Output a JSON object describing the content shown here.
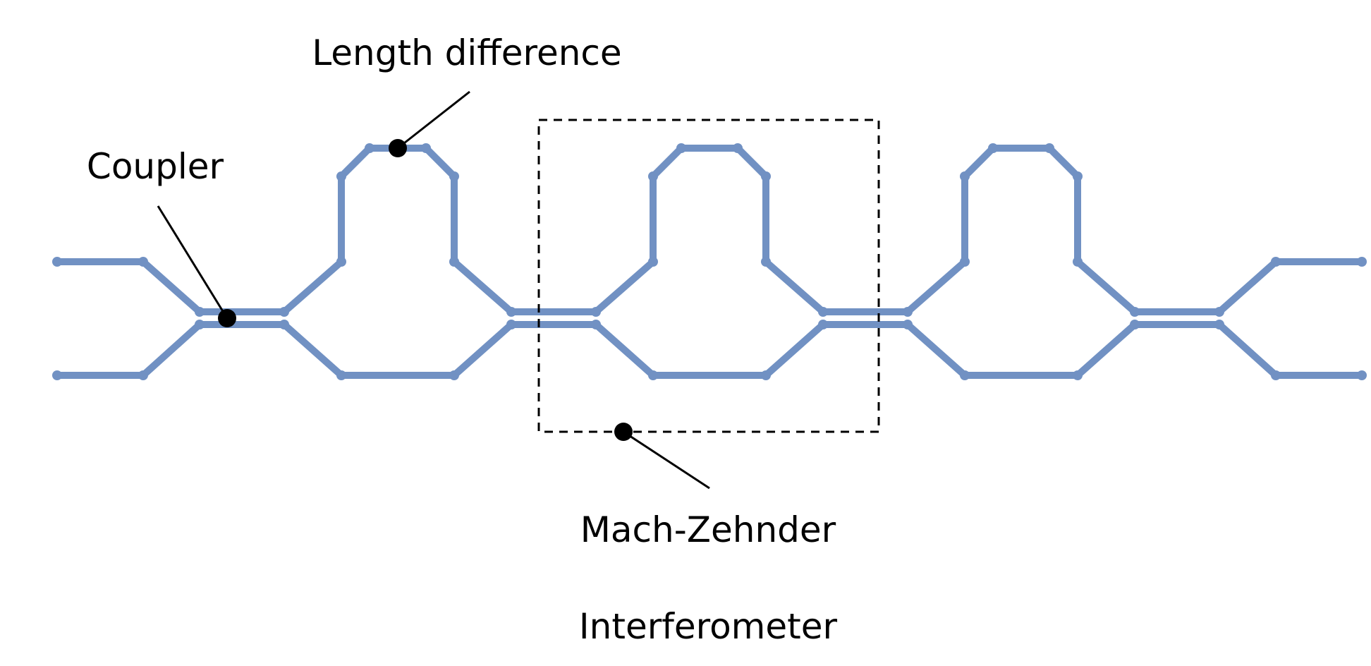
{
  "labels": {
    "length_difference": "Length difference",
    "coupler": "Coupler",
    "mach_zehnder": "Mach-Zehnder",
    "interferometer": "Interferometer"
  },
  "colors": {
    "waveguide": "#7191c3",
    "annotation": "#000000",
    "background": "#ffffff"
  },
  "structure": {
    "couplers": 4,
    "delay_sections": 3
  }
}
